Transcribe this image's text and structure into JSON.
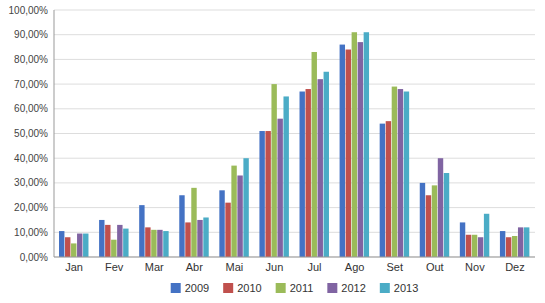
{
  "chart_data": {
    "type": "bar",
    "categories": [
      "Jan",
      "Fev",
      "Mar",
      "Abr",
      "Mai",
      "Jun",
      "Jul",
      "Ago",
      "Set",
      "Out",
      "Nov",
      "Dez"
    ],
    "series": [
      {
        "name": "2009",
        "color": "#4472C4",
        "values": [
          10.5,
          15.0,
          21.0,
          25.0,
          27.0,
          51.0,
          67.0,
          86.0,
          54.0,
          30.0,
          14.0,
          10.5
        ]
      },
      {
        "name": "2010",
        "color": "#C0504D",
        "values": [
          8.0,
          13.0,
          12.0,
          14.0,
          22.0,
          51.0,
          68.0,
          84.0,
          55.0,
          25.0,
          9.0,
          8.0
        ]
      },
      {
        "name": "2011",
        "color": "#9BBB59",
        "values": [
          5.5,
          7.0,
          11.0,
          28.0,
          37.0,
          70.0,
          83.0,
          91.0,
          69.0,
          29.0,
          9.0,
          8.5
        ]
      },
      {
        "name": "2012",
        "color": "#8064A2",
        "values": [
          9.5,
          13.0,
          11.0,
          15.0,
          33.0,
          56.0,
          72.0,
          87.0,
          68.0,
          40.0,
          8.0,
          12.0
        ]
      },
      {
        "name": "2013",
        "color": "#4BACC6",
        "values": [
          9.5,
          11.5,
          10.5,
          16.0,
          40.0,
          65.0,
          75.0,
          91.0,
          67.0,
          34.0,
          17.5,
          12.0
        ]
      }
    ],
    "ylim": [
      0,
      100
    ],
    "yticks": [
      {
        "value": 0,
        "label": "0,00%"
      },
      {
        "value": 10,
        "label": "10,00%"
      },
      {
        "value": 20,
        "label": "20,00%"
      },
      {
        "value": 30,
        "label": "30,00%"
      },
      {
        "value": 40,
        "label": "40,00%"
      },
      {
        "value": 50,
        "label": "50,00%"
      },
      {
        "value": 60,
        "label": "60,00%"
      },
      {
        "value": 70,
        "label": "70,00%"
      },
      {
        "value": 80,
        "label": "80,00%"
      },
      {
        "value": 90,
        "label": "90,00%"
      },
      {
        "value": 100,
        "label": "100,00%"
      }
    ],
    "grid": true,
    "legend": "bottom"
  }
}
